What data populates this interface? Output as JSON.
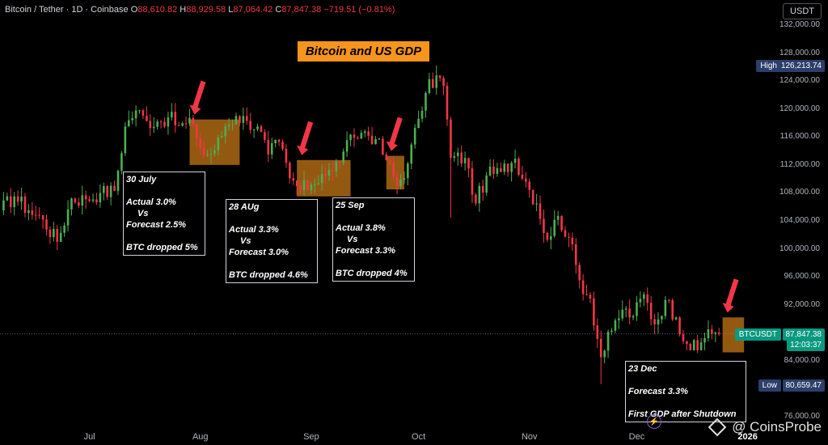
{
  "header": {
    "symbol": "Bitcoin / Tether · 1D · Coinbase",
    "o_label": "O",
    "o_value": "88,610.82",
    "h_label": "H",
    "h_value": "88,929.58",
    "l_label": "L",
    "l_value": "87,064.42",
    "c_label": "C",
    "c_value": "87,847.38",
    "change": "−719.51 (−0.81%)"
  },
  "currency_button": "USDT",
  "title": "Bitcoin and US GDP",
  "price_tags": {
    "high_label": "High",
    "high_value": "126,213.74",
    "low_label": "Low",
    "low_value": "80,659.47",
    "last_label": "BTCUSDT",
    "last_value": "87,847.38",
    "countdown": "12:03:37"
  },
  "annotations": [
    {
      "date": "30 July",
      "lines": [
        "Actual 3.0%",
        "Vs",
        "Forecast 2.5%",
        "",
        "BTC dropped 5%"
      ]
    },
    {
      "date": "28 AUg",
      "lines": [
        "Actual 3.3%",
        "Vs",
        "Forecast 3.0%",
        "",
        "BTC dropped 4.6%"
      ]
    },
    {
      "date": "25 Sep",
      "lines": [
        "Actual 3.8%",
        "Vs",
        "Forecast 3.3%",
        "",
        "BTC dropped 4%"
      ]
    },
    {
      "date": "23 Dec",
      "lines": [
        "Forecast 3.3%",
        "",
        "First GDP after Shutdown"
      ]
    }
  ],
  "watermark": "@ CoinsProbe",
  "colors": {
    "up": "#26a69a",
    "up_bright": "#4caf50",
    "down": "#f23645",
    "highlight": "#f7941d",
    "arrow": "#f23645",
    "background": "#000000"
  },
  "chart_data": {
    "type": "candlestick",
    "y_ticks": [
      "132,000.00",
      "128,000.00",
      "124,000.00",
      "120,000.00",
      "116,000.00",
      "112,000.00",
      "108,000.00",
      "104,000.00",
      "100,000.00",
      "96,000.00",
      "92,000.00",
      "88,000.00",
      "84,000.00",
      "76,000.00"
    ],
    "y_tick_values": [
      132000,
      128000,
      124000,
      120000,
      116000,
      112000,
      108000,
      104000,
      100000,
      96000,
      92000,
      88000,
      84000,
      76000
    ],
    "ylim": [
      74500,
      133500
    ],
    "x_ticks": [
      "Jul",
      "Aug",
      "Sep",
      "Oct",
      "Nov",
      "Dec",
      "2026"
    ],
    "x_tick_dates": [
      "2025-07-01",
      "2025-08-01",
      "2025-09-01",
      "2025-10-01",
      "2025-11-01",
      "2025-12-01",
      "2026-01-01"
    ],
    "date_range": [
      "2025-06-06",
      "2026-01-09"
    ],
    "closes": [
      [
        "2025-06-06",
        105500
      ],
      [
        "2025-06-10",
        107500
      ],
      [
        "2025-06-14",
        105500
      ],
      [
        "2025-06-18",
        104200
      ],
      [
        "2025-06-22",
        101000
      ],
      [
        "2025-06-26",
        107200
      ],
      [
        "2025-06-30",
        107100
      ],
      [
        "2025-07-04",
        108000
      ],
      [
        "2025-07-08",
        108300
      ],
      [
        "2025-07-11",
        117500
      ],
      [
        "2025-07-14",
        119800
      ],
      [
        "2025-07-17",
        118300
      ],
      [
        "2025-07-20",
        118200
      ],
      [
        "2025-07-23",
        118800
      ],
      [
        "2025-07-26",
        117600
      ],
      [
        "2025-07-30",
        117800
      ],
      [
        "2025-08-02",
        113300
      ],
      [
        "2025-08-05",
        114100
      ],
      [
        "2025-08-08",
        117500
      ],
      [
        "2025-08-11",
        119000
      ],
      [
        "2025-08-14",
        118300
      ],
      [
        "2025-08-17",
        117500
      ],
      [
        "2025-08-20",
        113500
      ],
      [
        "2025-08-23",
        115300
      ],
      [
        "2025-08-26",
        110100
      ],
      [
        "2025-08-29",
        108400
      ],
      [
        "2025-09-01",
        109200
      ],
      [
        "2025-09-04",
        110700
      ],
      [
        "2025-09-07",
        111100
      ],
      [
        "2025-09-10",
        113900
      ],
      [
        "2025-09-13",
        115900
      ],
      [
        "2025-09-16",
        116800
      ],
      [
        "2025-09-19",
        115700
      ],
      [
        "2025-09-22",
        112700
      ],
      [
        "2025-09-25",
        109000
      ],
      [
        "2025-09-28",
        112200
      ],
      [
        "2025-10-01",
        118600
      ],
      [
        "2025-10-03",
        122300
      ],
      [
        "2025-10-06",
        124800
      ],
      [
        "2025-10-08",
        123300
      ],
      [
        "2025-10-10",
        113000
      ],
      [
        "2025-10-14",
        113000
      ],
      [
        "2025-10-17",
        106500
      ],
      [
        "2025-10-20",
        110500
      ],
      [
        "2025-10-24",
        111000
      ],
      [
        "2025-10-28",
        112900
      ],
      [
        "2025-10-31",
        109600
      ],
      [
        "2025-11-03",
        106500
      ],
      [
        "2025-11-06",
        101300
      ],
      [
        "2025-11-09",
        104700
      ],
      [
        "2025-11-12",
        101600
      ],
      [
        "2025-11-15",
        95500
      ],
      [
        "2025-11-18",
        92900
      ],
      [
        "2025-11-21",
        84500
      ],
      [
        "2025-11-24",
        88300
      ],
      [
        "2025-11-27",
        91300
      ],
      [
        "2025-11-30",
        90400
      ],
      [
        "2025-12-03",
        93500
      ],
      [
        "2025-12-06",
        89200
      ],
      [
        "2025-12-09",
        92700
      ],
      [
        "2025-12-12",
        90200
      ],
      [
        "2025-12-15",
        86400
      ],
      [
        "2025-12-18",
        85500
      ],
      [
        "2025-12-21",
        88500
      ],
      [
        "2025-12-24",
        87847
      ]
    ],
    "high": 126213.74,
    "low": 80659.47,
    "last": 87847.38,
    "gdp_markers": [
      {
        "from": "2025-07-29",
        "to": "2025-08-12",
        "low": 112000,
        "high": 118500
      },
      {
        "from": "2025-08-28",
        "to": "2025-09-12",
        "low": 107500,
        "high": 112700
      },
      {
        "from": "2025-09-22",
        "to": "2025-09-27",
        "low": 108500,
        "high": 113300
      },
      {
        "from": "2025-12-25",
        "to": "2025-12-31",
        "low": 85200,
        "high": 90200
      }
    ]
  }
}
